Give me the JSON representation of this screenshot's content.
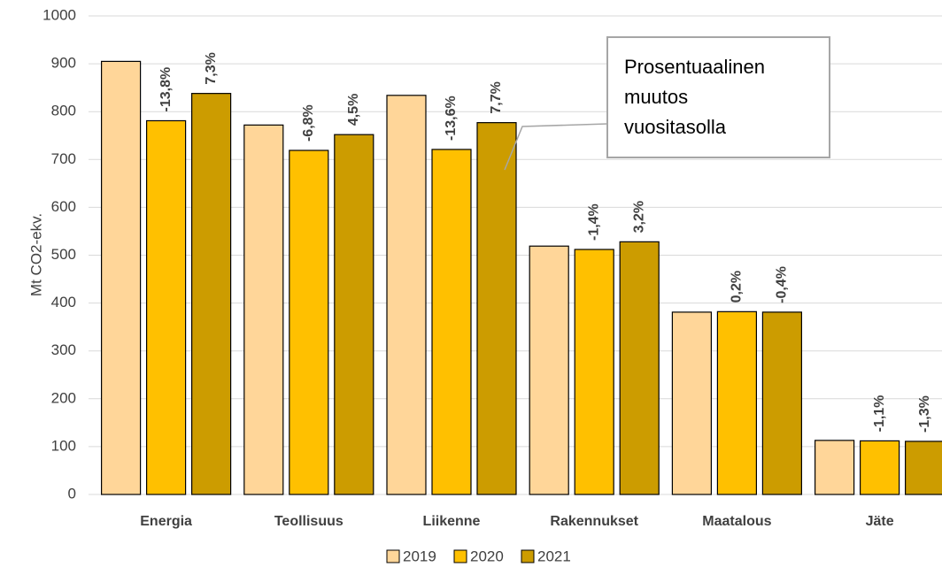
{
  "chart_data": {
    "type": "bar",
    "y_label": "Mt CO2-ekv.",
    "categories": [
      "Energia",
      "Teollisuus",
      "Liikenne",
      "Rakennukset",
      "Maatalous",
      "Jäte"
    ],
    "series": [
      {
        "name": "2019",
        "color": "#ffd699",
        "values": [
          905,
          772,
          834,
          519,
          381,
          113
        ]
      },
      {
        "name": "2020",
        "color": "#ffc000",
        "values": [
          781,
          719,
          721,
          512,
          382,
          112
        ],
        "change_labels": [
          "-13,8%",
          "-6,8%",
          "-13,6%",
          "-1,4%",
          "0,2%",
          "-1,1%"
        ]
      },
      {
        "name": "2021",
        "color": "#cc9c00",
        "values": [
          838,
          752,
          777,
          528,
          381,
          111
        ],
        "change_labels": [
          "7,3%",
          "4,5%",
          "7,7%",
          "3,2%",
          "-0,4%",
          "-1,3%"
        ]
      }
    ],
    "ylim": [
      0,
      1000
    ],
    "yticks": [
      0,
      100,
      200,
      300,
      400,
      500,
      600,
      700,
      800,
      900,
      1000
    ],
    "grid": true,
    "annotation": [
      "Prosentuaalinen",
      "muutos",
      "vuositasolla"
    ]
  }
}
